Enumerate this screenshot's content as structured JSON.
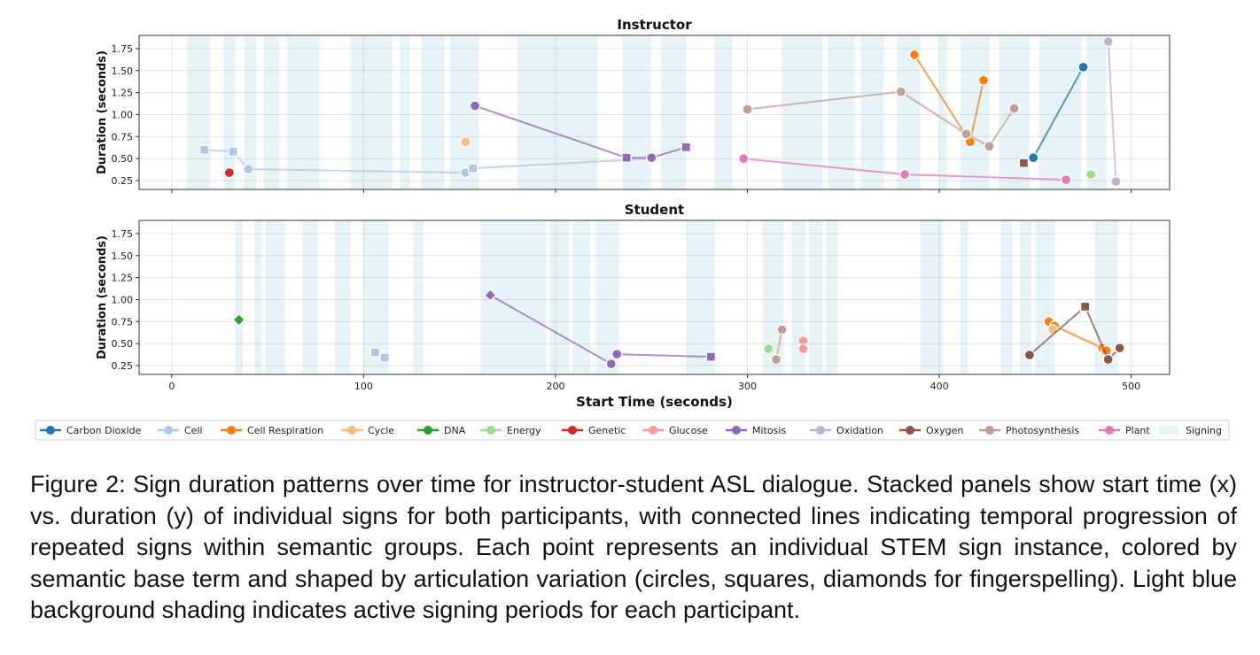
{
  "chart_data": {
    "type": "scatter",
    "xlabel": "Start Time (seconds)",
    "xlim": [
      -17,
      520
    ],
    "xticks": [
      0,
      100,
      200,
      300,
      400,
      500
    ],
    "ylim": [
      0.15,
      1.9
    ],
    "yticks": [
      0.25,
      0.5,
      0.75,
      1.0,
      1.25,
      1.5,
      1.75
    ],
    "ytick_labels": [
      "0.25",
      "0.50",
      "0.75",
      "1.00",
      "1.25",
      "1.50",
      "1.75"
    ],
    "grid": true,
    "legend_position": "bottom",
    "legend": [
      {
        "name": "Carbon Dioxide",
        "color": "#1f77b4",
        "kind": "line"
      },
      {
        "name": "Cell",
        "color": "#aec7e8",
        "kind": "line"
      },
      {
        "name": "Cell Respiration",
        "color": "#ff7f0e",
        "kind": "line"
      },
      {
        "name": "Cycle",
        "color": "#ffbb78",
        "kind": "line"
      },
      {
        "name": "DNA",
        "color": "#2ca02c",
        "kind": "line"
      },
      {
        "name": "Energy",
        "color": "#98df8a",
        "kind": "line"
      },
      {
        "name": "Genetic",
        "color": "#d62728",
        "kind": "line"
      },
      {
        "name": "Glucose",
        "color": "#ff9896",
        "kind": "line"
      },
      {
        "name": "Mitosis",
        "color": "#9467bd",
        "kind": "line"
      },
      {
        "name": "Oxidation",
        "color": "#c5b0d5",
        "kind": "line"
      },
      {
        "name": "Oxygen",
        "color": "#8c564b",
        "kind": "line"
      },
      {
        "name": "Photosynthesis",
        "color": "#c49c94",
        "kind": "line"
      },
      {
        "name": "Plant",
        "color": "#e377c2",
        "kind": "line"
      },
      {
        "name": "Signing",
        "color": "#e6f4f8",
        "kind": "patch"
      }
    ],
    "panels": [
      {
        "title": "Instructor",
        "ylabel": "Duration (seconds)",
        "signing_periods": [
          [
            8,
            20
          ],
          [
            27,
            33
          ],
          [
            38,
            44
          ],
          [
            48,
            56
          ],
          [
            60,
            77
          ],
          [
            93,
            115
          ],
          [
            119,
            124
          ],
          [
            130,
            142
          ],
          [
            145,
            160
          ],
          [
            180,
            222
          ],
          [
            235,
            250
          ],
          [
            255,
            268
          ],
          [
            283,
            292
          ],
          [
            318,
            339
          ],
          [
            342,
            356
          ],
          [
            359,
            371
          ],
          [
            378,
            390
          ],
          [
            400,
            404
          ],
          [
            411,
            426
          ],
          [
            431,
            447
          ],
          [
            452,
            474
          ],
          [
            477,
            487
          ]
        ],
        "series": [
          {
            "name": "Carbon Dioxide",
            "color": "#1f77b4",
            "points": [
              {
                "x": 449,
                "y": 0.51,
                "m": "o"
              },
              {
                "x": 475,
                "y": 1.54,
                "m": "o"
              }
            ]
          },
          {
            "name": "Cell",
            "color": "#aec7e8",
            "points": [
              {
                "x": 17,
                "y": 0.6,
                "m": "s"
              },
              {
                "x": 32,
                "y": 0.58,
                "m": "s"
              },
              {
                "x": 40,
                "y": 0.38,
                "m": "o"
              },
              {
                "x": 153,
                "y": 0.34,
                "m": "o"
              },
              {
                "x": 157,
                "y": 0.39,
                "m": "s"
              },
              {
                "x": 250,
                "y": 0.5,
                "m": "o"
              }
            ]
          },
          {
            "name": "Cell Respiration",
            "color": "#ff7f0e",
            "points": [
              {
                "x": 387,
                "y": 1.68,
                "m": "o"
              },
              {
                "x": 416,
                "y": 0.69,
                "m": "o"
              },
              {
                "x": 423,
                "y": 1.39,
                "m": "o"
              }
            ]
          },
          {
            "name": "Cycle",
            "color": "#ffbb78",
            "points": [
              {
                "x": 153,
                "y": 0.69,
                "m": "o"
              }
            ]
          },
          {
            "name": "Energy",
            "color": "#98df8a",
            "points": [
              {
                "x": 479,
                "y": 0.32,
                "m": "o"
              }
            ]
          },
          {
            "name": "Genetic",
            "color": "#d62728",
            "points": [
              {
                "x": 30,
                "y": 0.34,
                "m": "o"
              }
            ]
          },
          {
            "name": "Mitosis",
            "color": "#9467bd",
            "points": [
              {
                "x": 158,
                "y": 1.1,
                "m": "o"
              },
              {
                "x": 237,
                "y": 0.51,
                "m": "s"
              },
              {
                "x": 250,
                "y": 0.51,
                "m": "o"
              },
              {
                "x": 268,
                "y": 0.63,
                "m": "s"
              }
            ]
          },
          {
            "name": "Oxidation",
            "color": "#c5b0d5",
            "points": [
              {
                "x": 488,
                "y": 1.83,
                "m": "o"
              },
              {
                "x": 492,
                "y": 0.24,
                "m": "o"
              }
            ]
          },
          {
            "name": "Oxygen",
            "color": "#8c564b",
            "points": [
              {
                "x": 444,
                "y": 0.45,
                "m": "s"
              }
            ]
          },
          {
            "name": "Photosynthesis",
            "color": "#c49c94",
            "points": [
              {
                "x": 300,
                "y": 1.06,
                "m": "o"
              },
              {
                "x": 380,
                "y": 1.26,
                "m": "o"
              },
              {
                "x": 414,
                "y": 0.78,
                "m": "o"
              },
              {
                "x": 426,
                "y": 0.64,
                "m": "o"
              },
              {
                "x": 439,
                "y": 1.07,
                "m": "o"
              }
            ]
          },
          {
            "name": "Plant",
            "color": "#e377c2",
            "points": [
              {
                "x": 298,
                "y": 0.5,
                "m": "o"
              },
              {
                "x": 382,
                "y": 0.32,
                "m": "o"
              },
              {
                "x": 466,
                "y": 0.26,
                "m": "o"
              }
            ]
          }
        ]
      },
      {
        "title": "Student",
        "ylabel": "Duration (seconds)",
        "signing_periods": [
          [
            33,
            37
          ],
          [
            43,
            47
          ],
          [
            49,
            59
          ],
          [
            68,
            76
          ],
          [
            85,
            93
          ],
          [
            100,
            113
          ],
          [
            126,
            131
          ],
          [
            161,
            195
          ],
          [
            197,
            207
          ],
          [
            209,
            218
          ],
          [
            221,
            233
          ],
          [
            268,
            283
          ],
          [
            308,
            319
          ],
          [
            323,
            330
          ],
          [
            332,
            339
          ],
          [
            341,
            347
          ],
          [
            390,
            402
          ],
          [
            411,
            415
          ],
          [
            432,
            438
          ],
          [
            442,
            448
          ],
          [
            450,
            460
          ],
          [
            481,
            493
          ]
        ],
        "series": [
          {
            "name": "Cell",
            "color": "#aec7e8",
            "points": [
              {
                "x": 106,
                "y": 0.4,
                "m": "s"
              },
              {
                "x": 111,
                "y": 0.34,
                "m": "s"
              }
            ]
          },
          {
            "name": "Cell Respiration",
            "color": "#ff7f0e",
            "points": [
              {
                "x": 457,
                "y": 0.75,
                "m": "o"
              },
              {
                "x": 460,
                "y": 0.7,
                "m": "o"
              },
              {
                "x": 485,
                "y": 0.45,
                "m": "o"
              },
              {
                "x": 487,
                "y": 0.42,
                "m": "o"
              }
            ]
          },
          {
            "name": "Cycle",
            "color": "#ffbb78",
            "points": [
              {
                "x": 459,
                "y": 0.66,
                "m": "o"
              }
            ]
          },
          {
            "name": "DNA",
            "color": "#2ca02c",
            "points": [
              {
                "x": 35,
                "y": 0.77,
                "m": "D"
              }
            ]
          },
          {
            "name": "Energy",
            "color": "#98df8a",
            "points": [
              {
                "x": 311,
                "y": 0.44,
                "m": "o"
              }
            ]
          },
          {
            "name": "Glucose",
            "color": "#ff9896",
            "points": [
              {
                "x": 329,
                "y": 0.53,
                "m": "o"
              },
              {
                "x": 329,
                "y": 0.44,
                "m": "o"
              }
            ]
          },
          {
            "name": "Mitosis",
            "color": "#9467bd",
            "points": [
              {
                "x": 166,
                "y": 1.05,
                "m": "D"
              },
              {
                "x": 229,
                "y": 0.27,
                "m": "o"
              },
              {
                "x": 232,
                "y": 0.38,
                "m": "o"
              },
              {
                "x": 281,
                "y": 0.35,
                "m": "s"
              }
            ]
          },
          {
            "name": "Oxygen",
            "color": "#8c564b",
            "points": [
              {
                "x": 447,
                "y": 0.37,
                "m": "o"
              },
              {
                "x": 476,
                "y": 0.92,
                "m": "s"
              },
              {
                "x": 488,
                "y": 0.32,
                "m": "o"
              },
              {
                "x": 494,
                "y": 0.45,
                "m": "o"
              }
            ]
          },
          {
            "name": "Photosynthesis",
            "color": "#c49c94",
            "points": [
              {
                "x": 315,
                "y": 0.32,
                "m": "o"
              },
              {
                "x": 318,
                "y": 0.66,
                "m": "o"
              }
            ]
          }
        ]
      }
    ]
  },
  "caption": "Figure 2: Sign duration patterns over time for instructor-student ASL dialogue. Stacked panels show start time (x) vs. duration (y) of individual signs for both participants, with connected lines indicating temporal progression of repeated signs within semantic groups. Each point represents an individual STEM sign instance, colored by semantic base term and shaped by articulation variation (circles, squares, diamonds for fingerspelling). Light blue background shading indicates active signing periods for each participant."
}
